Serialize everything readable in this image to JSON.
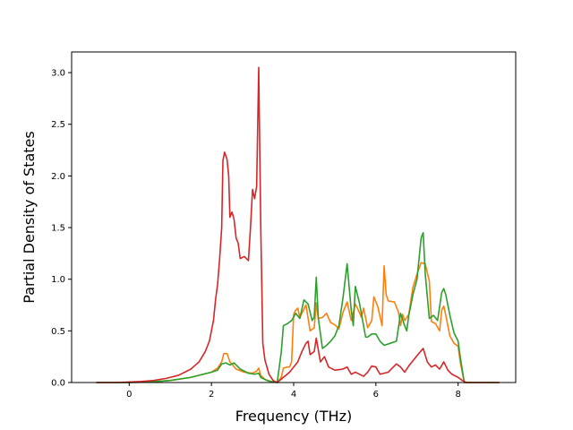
{
  "chart_data": {
    "type": "line",
    "title": "",
    "xlabel": "Frequency (THz)",
    "ylabel": "Partial Density of States",
    "xlim": [
      -1.4,
      9.4
    ],
    "ylim": [
      0,
      3.2
    ],
    "xticks": [
      "0",
      "2",
      "4",
      "6",
      "8"
    ],
    "yticks": [
      "0.0",
      "0.5",
      "1.0",
      "1.5",
      "2.0",
      "2.5",
      "3.0"
    ],
    "grid": false,
    "series": [
      {
        "color": "#ff7f0e",
        "points": [
          [
            -0.8,
            0
          ],
          [
            0,
            0
          ],
          [
            0.5,
            0.005
          ],
          [
            1,
            0.02
          ],
          [
            1.5,
            0.05
          ],
          [
            1.8,
            0.08
          ],
          [
            2.0,
            0.1
          ],
          [
            2.15,
            0.14
          ],
          [
            2.25,
            0.2
          ],
          [
            2.3,
            0.28
          ],
          [
            2.38,
            0.28
          ],
          [
            2.45,
            0.2
          ],
          [
            2.6,
            0.13
          ],
          [
            2.8,
            0.1
          ],
          [
            3.0,
            0.09
          ],
          [
            3.1,
            0.11
          ],
          [
            3.15,
            0.14
          ],
          [
            3.2,
            0.07
          ],
          [
            3.3,
            0.03
          ],
          [
            3.45,
            0.01
          ],
          [
            3.6,
            0
          ],
          [
            3.7,
            0.05
          ],
          [
            3.75,
            0.14
          ],
          [
            3.85,
            0.15
          ],
          [
            3.9,
            0.15
          ],
          [
            3.95,
            0.2
          ],
          [
            4.0,
            0.66
          ],
          [
            4.05,
            0.7
          ],
          [
            4.1,
            0.72
          ],
          [
            4.15,
            0.63
          ],
          [
            4.2,
            0.67
          ],
          [
            4.3,
            0.75
          ],
          [
            4.4,
            0.5
          ],
          [
            4.5,
            0.53
          ],
          [
            4.55,
            0.77
          ],
          [
            4.6,
            0.62
          ],
          [
            4.7,
            0.63
          ],
          [
            4.8,
            0.67
          ],
          [
            4.9,
            0.58
          ],
          [
            5.0,
            0.56
          ],
          [
            5.1,
            0.52
          ],
          [
            5.2,
            0.68
          ],
          [
            5.3,
            0.78
          ],
          [
            5.4,
            0.6
          ],
          [
            5.5,
            0.76
          ],
          [
            5.55,
            0.72
          ],
          [
            5.65,
            0.63
          ],
          [
            5.7,
            0.72
          ],
          [
            5.8,
            0.53
          ],
          [
            5.9,
            0.6
          ],
          [
            5.95,
            0.83
          ],
          [
            6.05,
            0.73
          ],
          [
            6.15,
            0.55
          ],
          [
            6.2,
            1.13
          ],
          [
            6.25,
            0.85
          ],
          [
            6.3,
            0.79
          ],
          [
            6.45,
            0.78
          ],
          [
            6.55,
            0.68
          ],
          [
            6.6,
            0.55
          ],
          [
            6.65,
            0.66
          ],
          [
            6.7,
            0.6
          ],
          [
            6.8,
            0.66
          ],
          [
            6.9,
            0.92
          ],
          [
            7.0,
            1.05
          ],
          [
            7.1,
            1.16
          ],
          [
            7.2,
            1.15
          ],
          [
            7.3,
            0.98
          ],
          [
            7.35,
            0.59
          ],
          [
            7.45,
            0.57
          ],
          [
            7.55,
            0.5
          ],
          [
            7.6,
            0.7
          ],
          [
            7.65,
            0.74
          ],
          [
            7.7,
            0.65
          ],
          [
            7.8,
            0.45
          ],
          [
            7.9,
            0.38
          ],
          [
            8.0,
            0.35
          ],
          [
            8.05,
            0.2
          ],
          [
            8.15,
            0
          ],
          [
            9.0,
            0
          ]
        ]
      },
      {
        "color": "#2ca02c",
        "points": [
          [
            -0.8,
            0
          ],
          [
            0,
            0
          ],
          [
            0.5,
            0.005
          ],
          [
            1,
            0.02
          ],
          [
            1.5,
            0.05
          ],
          [
            1.8,
            0.08
          ],
          [
            2.0,
            0.1
          ],
          [
            2.15,
            0.12
          ],
          [
            2.25,
            0.18
          ],
          [
            2.35,
            0.19
          ],
          [
            2.45,
            0.17
          ],
          [
            2.55,
            0.19
          ],
          [
            2.7,
            0.13
          ],
          [
            2.9,
            0.09
          ],
          [
            3.05,
            0.08
          ],
          [
            3.15,
            0.09
          ],
          [
            3.2,
            0.05
          ],
          [
            3.35,
            0.02
          ],
          [
            3.5,
            0.005
          ],
          [
            3.6,
            0
          ],
          [
            3.7,
            0.3
          ],
          [
            3.75,
            0.55
          ],
          [
            3.85,
            0.57
          ],
          [
            3.95,
            0.6
          ],
          [
            4.05,
            0.67
          ],
          [
            4.15,
            0.62
          ],
          [
            4.25,
            0.8
          ],
          [
            4.35,
            0.76
          ],
          [
            4.45,
            0.6
          ],
          [
            4.5,
            0.63
          ],
          [
            4.55,
            1.02
          ],
          [
            4.6,
            0.62
          ],
          [
            4.7,
            0.33
          ],
          [
            4.8,
            0.36
          ],
          [
            4.9,
            0.4
          ],
          [
            5.0,
            0.45
          ],
          [
            5.1,
            0.55
          ],
          [
            5.2,
            0.82
          ],
          [
            5.3,
            1.15
          ],
          [
            5.4,
            0.7
          ],
          [
            5.45,
            0.55
          ],
          [
            5.5,
            0.93
          ],
          [
            5.6,
            0.77
          ],
          [
            5.7,
            0.55
          ],
          [
            5.75,
            0.44
          ],
          [
            5.8,
            0.44
          ],
          [
            5.9,
            0.47
          ],
          [
            6.0,
            0.47
          ],
          [
            6.1,
            0.4
          ],
          [
            6.2,
            0.36
          ],
          [
            6.35,
            0.38
          ],
          [
            6.5,
            0.4
          ],
          [
            6.6,
            0.67
          ],
          [
            6.7,
            0.55
          ],
          [
            6.75,
            0.5
          ],
          [
            6.8,
            0.65
          ],
          [
            6.9,
            0.85
          ],
          [
            7.0,
            1.0
          ],
          [
            7.1,
            1.4
          ],
          [
            7.15,
            1.45
          ],
          [
            7.2,
            1.05
          ],
          [
            7.3,
            0.62
          ],
          [
            7.4,
            0.65
          ],
          [
            7.5,
            0.6
          ],
          [
            7.6,
            0.87
          ],
          [
            7.65,
            0.91
          ],
          [
            7.7,
            0.85
          ],
          [
            7.8,
            0.65
          ],
          [
            7.9,
            0.48
          ],
          [
            8.0,
            0.4
          ],
          [
            8.05,
            0.25
          ],
          [
            8.15,
            0
          ],
          [
            9.0,
            0
          ]
        ]
      },
      {
        "color": "#d62728",
        "points": [
          [
            -0.8,
            0
          ],
          [
            -0.3,
            0
          ],
          [
            0,
            0.005
          ],
          [
            0.3,
            0.01
          ],
          [
            0.6,
            0.02
          ],
          [
            0.9,
            0.04
          ],
          [
            1.2,
            0.07
          ],
          [
            1.5,
            0.13
          ],
          [
            1.7,
            0.2
          ],
          [
            1.85,
            0.3
          ],
          [
            1.95,
            0.4
          ],
          [
            2.05,
            0.6
          ],
          [
            2.1,
            0.8
          ],
          [
            2.15,
            0.95
          ],
          [
            2.2,
            1.2
          ],
          [
            2.25,
            1.5
          ],
          [
            2.28,
            2.15
          ],
          [
            2.32,
            2.23
          ],
          [
            2.38,
            2.16
          ],
          [
            2.42,
            2.0
          ],
          [
            2.45,
            1.6
          ],
          [
            2.5,
            1.65
          ],
          [
            2.55,
            1.58
          ],
          [
            2.6,
            1.4
          ],
          [
            2.65,
            1.35
          ],
          [
            2.7,
            1.2
          ],
          [
            2.8,
            1.22
          ],
          [
            2.9,
            1.18
          ],
          [
            2.95,
            1.5
          ],
          [
            3.0,
            1.87
          ],
          [
            3.05,
            1.78
          ],
          [
            3.1,
            1.9
          ],
          [
            3.15,
            3.05
          ],
          [
            3.2,
            1.5
          ],
          [
            3.25,
            0.38
          ],
          [
            3.3,
            0.22
          ],
          [
            3.4,
            0.08
          ],
          [
            3.5,
            0.02
          ],
          [
            3.6,
            0
          ],
          [
            3.75,
            0.05
          ],
          [
            3.9,
            0.1
          ],
          [
            4.0,
            0.15
          ],
          [
            4.1,
            0.2
          ],
          [
            4.2,
            0.3
          ],
          [
            4.3,
            0.38
          ],
          [
            4.35,
            0.4
          ],
          [
            4.4,
            0.27
          ],
          [
            4.5,
            0.3
          ],
          [
            4.55,
            0.43
          ],
          [
            4.65,
            0.2
          ],
          [
            4.75,
            0.25
          ],
          [
            4.85,
            0.15
          ],
          [
            5.0,
            0.12
          ],
          [
            5.2,
            0.13
          ],
          [
            5.3,
            0.15
          ],
          [
            5.4,
            0.08
          ],
          [
            5.5,
            0.1
          ],
          [
            5.7,
            0.06
          ],
          [
            5.8,
            0.1
          ],
          [
            5.9,
            0.16
          ],
          [
            6.0,
            0.15
          ],
          [
            6.1,
            0.08
          ],
          [
            6.3,
            0.1
          ],
          [
            6.5,
            0.18
          ],
          [
            6.6,
            0.15
          ],
          [
            6.7,
            0.1
          ],
          [
            6.8,
            0.16
          ],
          [
            7.0,
            0.26
          ],
          [
            7.15,
            0.33
          ],
          [
            7.25,
            0.2
          ],
          [
            7.35,
            0.15
          ],
          [
            7.45,
            0.17
          ],
          [
            7.55,
            0.13
          ],
          [
            7.65,
            0.2
          ],
          [
            7.75,
            0.12
          ],
          [
            7.85,
            0.08
          ],
          [
            8.0,
            0.05
          ],
          [
            8.1,
            0.02
          ],
          [
            8.2,
            0
          ],
          [
            9.0,
            0
          ]
        ]
      }
    ]
  }
}
